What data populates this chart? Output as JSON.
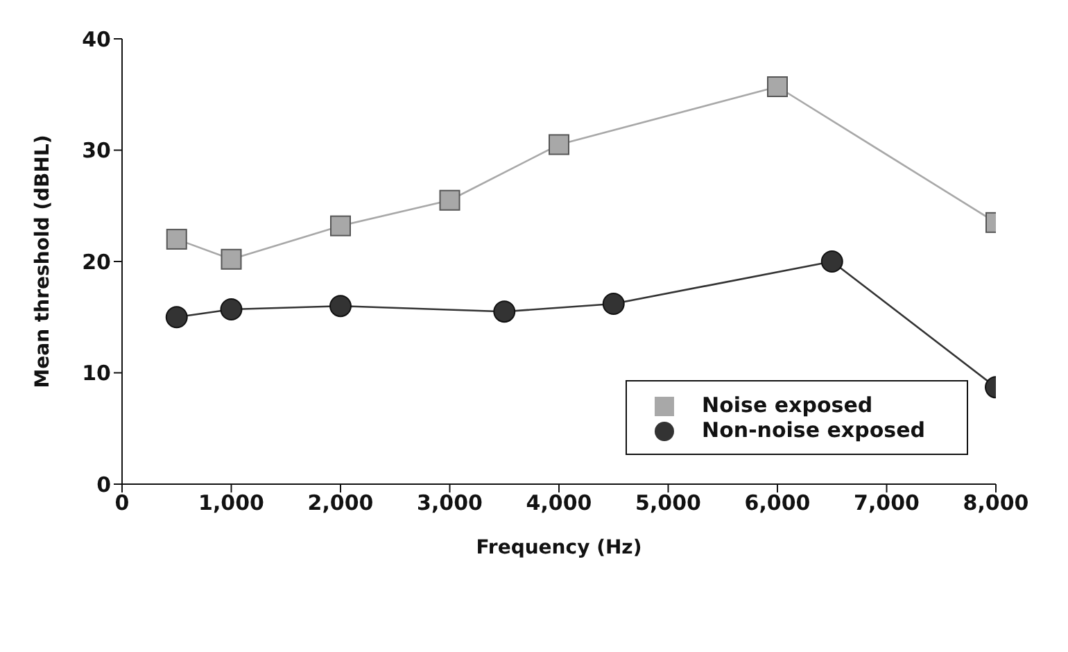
{
  "chart_data": {
    "type": "line",
    "xlabel": "Frequency (Hz)",
    "ylabel": "Mean threshold (dBHL)",
    "xlim": [
      0,
      8000
    ],
    "xticks": [
      0,
      {
        "value": 1000,
        "label": "1,000"
      },
      {
        "value": 2000,
        "label": "2,000"
      },
      {
        "value": 3000,
        "label": "3,000"
      },
      {
        "value": 4000,
        "label": "4,000"
      },
      {
        "value": 5000,
        "label": "5,000"
      },
      {
        "value": 6000,
        "label": "6,000"
      },
      {
        "value": 7000,
        "label": "7,000"
      },
      {
        "value": 8000,
        "label": "8,000"
      }
    ],
    "ylim": [
      0,
      40
    ],
    "yticks": [
      0,
      10,
      20,
      30,
      40
    ],
    "grid": false,
    "legend": "bottom right",
    "line_style": "solid",
    "series": [
      {
        "name": "Noise exposed",
        "color": "#a8a8a8",
        "marker": "square",
        "x": [
          500,
          1000,
          2000,
          3000,
          4000,
          6000,
          8000
        ],
        "values": [
          22,
          20.2,
          23.2,
          25.5,
          30.5,
          35.7,
          23.5
        ]
      },
      {
        "name": "Non-noise exposed",
        "color": "#333333",
        "marker": "circle",
        "x": [
          500,
          1000,
          2000,
          3500,
          4500,
          6500,
          8000
        ],
        "values": [
          15,
          15.7,
          16,
          15.5,
          16.2,
          20,
          8.7
        ]
      }
    ]
  }
}
